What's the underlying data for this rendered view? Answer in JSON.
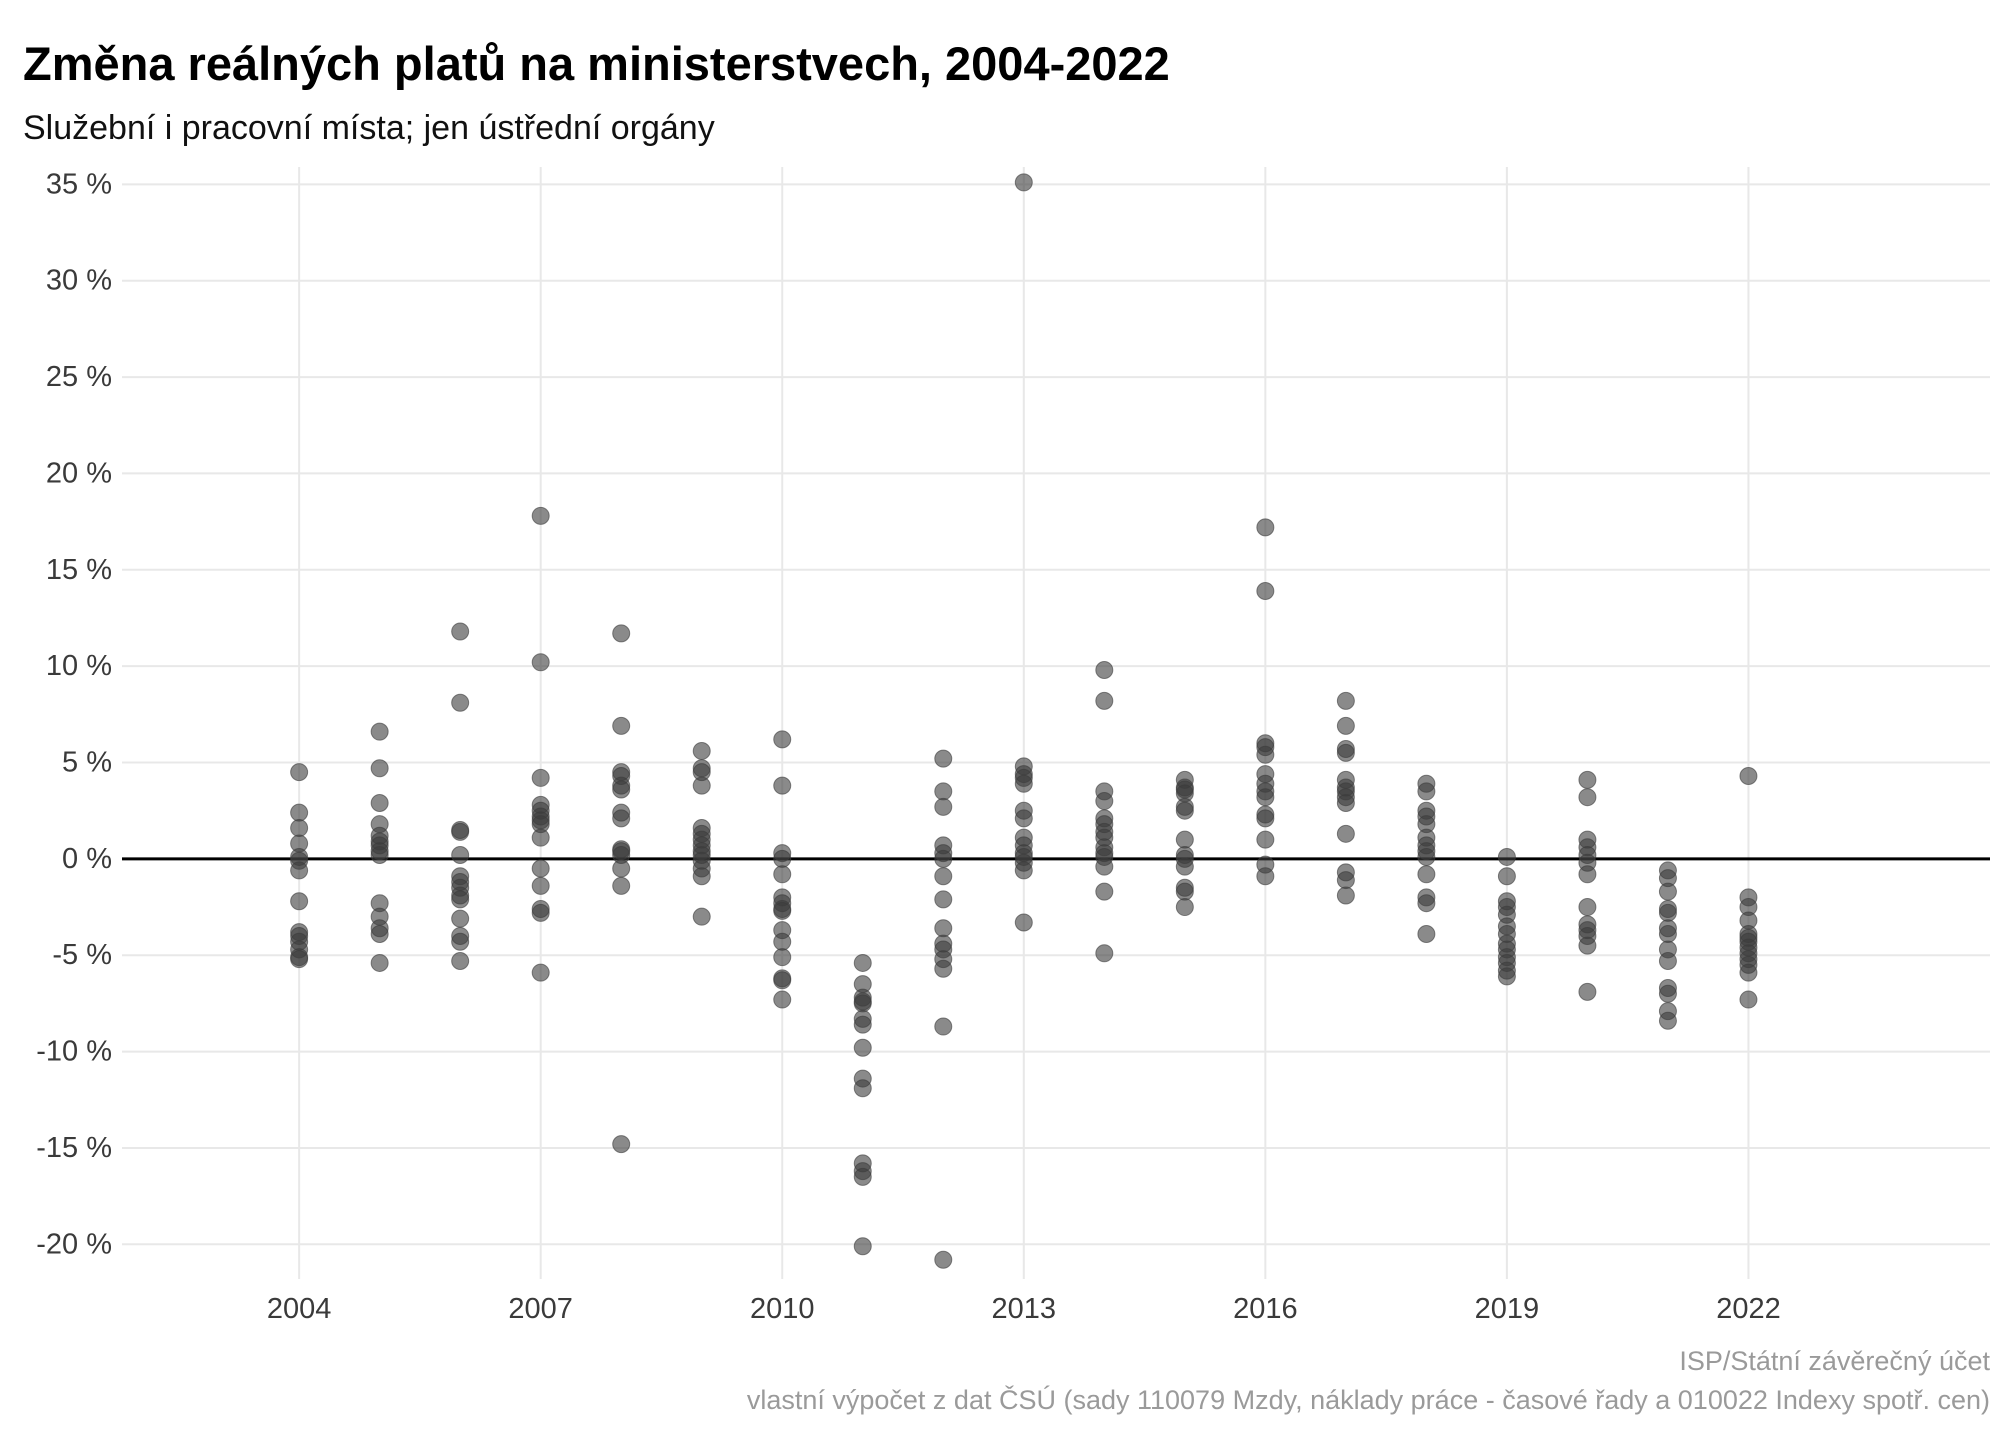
{
  "chart_data": {
    "type": "scatter",
    "title": "Změna reálných platů na ministerstvech, 2004-2022",
    "subtitle": "Služební i pracovní místa; jen ústřední orgány",
    "caption": [
      "ISP/Státní závěrečný účet",
      "vlastní výpočet z dat ČSÚ (sady 110079 Mzdy, náklady práce - časové řady a 010022 Indexy spotř. cen)"
    ],
    "xlabel": "",
    "ylabel": "",
    "xlim": [
      2001.8,
      2025.0
    ],
    "ylim": [
      -21.8,
      35.9
    ],
    "xticks": [
      2004,
      2007,
      2010,
      2013,
      2016,
      2019,
      2022
    ],
    "xtick_labels": [
      "2004",
      "2007",
      "2010",
      "2013",
      "2016",
      "2019",
      "2022"
    ],
    "yticks": [
      35,
      30,
      25,
      20,
      15,
      10,
      5,
      0,
      -5,
      -10,
      -15,
      -20
    ],
    "ytick_labels": [
      "35 %",
      "30 %",
      "25 %",
      "20 %",
      "15 %",
      "10 %",
      "5 %",
      "0 %",
      "-5 %",
      "-10 %",
      "-15 %",
      "-20 %"
    ],
    "grid": true,
    "legend": "none",
    "hline": 0,
    "point_color": "#3c3c3c",
    "point_opacity": 0.6,
    "data": [
      {
        "year": 2004,
        "values": [
          4.5,
          2.4,
          1.6,
          0.8,
          0.1,
          -0.1,
          -0.6,
          -2.2,
          -3.8,
          -4.0,
          -4.3,
          -4.7,
          -5.1,
          -5.2
        ]
      },
      {
        "year": 2005,
        "values": [
          6.6,
          4.7,
          2.9,
          1.8,
          1.2,
          0.9,
          0.7,
          0.4,
          0.2,
          -2.3,
          -3.0,
          -3.6,
          -3.9,
          -5.4
        ]
      },
      {
        "year": 2006,
        "values": [
          11.8,
          8.1,
          1.5,
          1.4,
          0.2,
          -0.9,
          -1.2,
          -1.5,
          -1.9,
          -2.1,
          -3.1,
          -4.0,
          -4.3,
          -5.3
        ]
      },
      {
        "year": 2007,
        "values": [
          17.8,
          10.2,
          4.2,
          2.8,
          2.5,
          2.2,
          2.0,
          1.8,
          1.1,
          -0.5,
          -1.4,
          -2.6,
          -2.8,
          -5.9
        ]
      },
      {
        "year": 2008,
        "values": [
          11.7,
          6.9,
          4.5,
          4.3,
          3.8,
          3.6,
          2.4,
          2.1,
          0.5,
          0.4,
          0.2,
          -0.5,
          -1.4,
          -14.8
        ]
      },
      {
        "year": 2009,
        "values": [
          5.6,
          4.7,
          4.5,
          3.8,
          1.6,
          1.3,
          1.0,
          0.7,
          0.4,
          0.2,
          -0.1,
          -0.5,
          -0.9,
          -3.0
        ]
      },
      {
        "year": 2010,
        "values": [
          6.2,
          3.8,
          0.3,
          0.0,
          -0.8,
          -2.0,
          -2.3,
          -2.6,
          -2.7,
          -3.7,
          -4.3,
          -5.1,
          -6.2,
          -6.3,
          -7.3
        ]
      },
      {
        "year": 2011,
        "values": [
          -5.4,
          -6.5,
          -7.2,
          -7.4,
          -7.5,
          -8.3,
          -8.6,
          -9.8,
          -11.4,
          -11.9,
          -15.8,
          -16.2,
          -16.5,
          -20.1
        ]
      },
      {
        "year": 2012,
        "values": [
          5.2,
          3.5,
          2.7,
          0.7,
          0.3,
          0.0,
          -0.9,
          -2.1,
          -3.6,
          -4.4,
          -4.7,
          -5.2,
          -5.7,
          -8.7,
          -20.8
        ]
      },
      {
        "year": 2013,
        "values": [
          35.1,
          4.8,
          4.4,
          4.2,
          3.9,
          2.5,
          2.1,
          1.1,
          0.7,
          0.3,
          0.1,
          -0.2,
          -0.6,
          -3.3
        ]
      },
      {
        "year": 2014,
        "values": [
          9.8,
          8.2,
          3.5,
          3.0,
          2.1,
          1.8,
          1.4,
          1.1,
          0.6,
          0.3,
          0.1,
          -0.4,
          -1.7,
          -4.9
        ]
      },
      {
        "year": 2015,
        "values": [
          4.1,
          3.7,
          3.6,
          3.4,
          2.7,
          2.5,
          1.0,
          0.2,
          0.0,
          -0.4,
          -1.5,
          -1.7,
          -2.5
        ]
      },
      {
        "year": 2016,
        "values": [
          17.2,
          13.9,
          6.0,
          5.8,
          5.4,
          4.4,
          3.9,
          3.5,
          3.2,
          2.3,
          2.1,
          1.0,
          -0.3,
          -0.9
        ]
      },
      {
        "year": 2017,
        "values": [
          8.2,
          6.9,
          5.7,
          5.5,
          4.1,
          3.7,
          3.5,
          3.2,
          2.9,
          1.3,
          -0.7,
          -1.1,
          -1.9
        ]
      },
      {
        "year": 2018,
        "values": [
          3.9,
          3.5,
          2.5,
          2.2,
          1.8,
          1.1,
          0.7,
          0.4,
          0.1,
          -0.8,
          -2.0,
          -2.3,
          -3.9
        ]
      },
      {
        "year": 2019,
        "values": [
          0.1,
          -0.9,
          -2.2,
          -2.5,
          -2.9,
          -3.5,
          -3.9,
          -4.4,
          -4.7,
          -5.1,
          -5.4,
          -5.8,
          -6.1
        ]
      },
      {
        "year": 2020,
        "values": [
          4.1,
          3.2,
          1.0,
          0.6,
          0.2,
          -0.2,
          -0.8,
          -2.5,
          -3.4,
          -3.7,
          -4.0,
          -4.5,
          -6.9
        ]
      },
      {
        "year": 2021,
        "values": [
          -0.6,
          -1.0,
          -1.7,
          -2.6,
          -2.8,
          -3.6,
          -3.9,
          -4.7,
          -5.3,
          -6.7,
          -7.0,
          -7.9,
          -8.4
        ]
      },
      {
        "year": 2022,
        "values": [
          4.3,
          -2.0,
          -2.5,
          -3.2,
          -3.9,
          -4.1,
          -4.3,
          -4.6,
          -4.9,
          -5.2,
          -5.5,
          -5.9,
          -7.3
        ]
      }
    ]
  }
}
